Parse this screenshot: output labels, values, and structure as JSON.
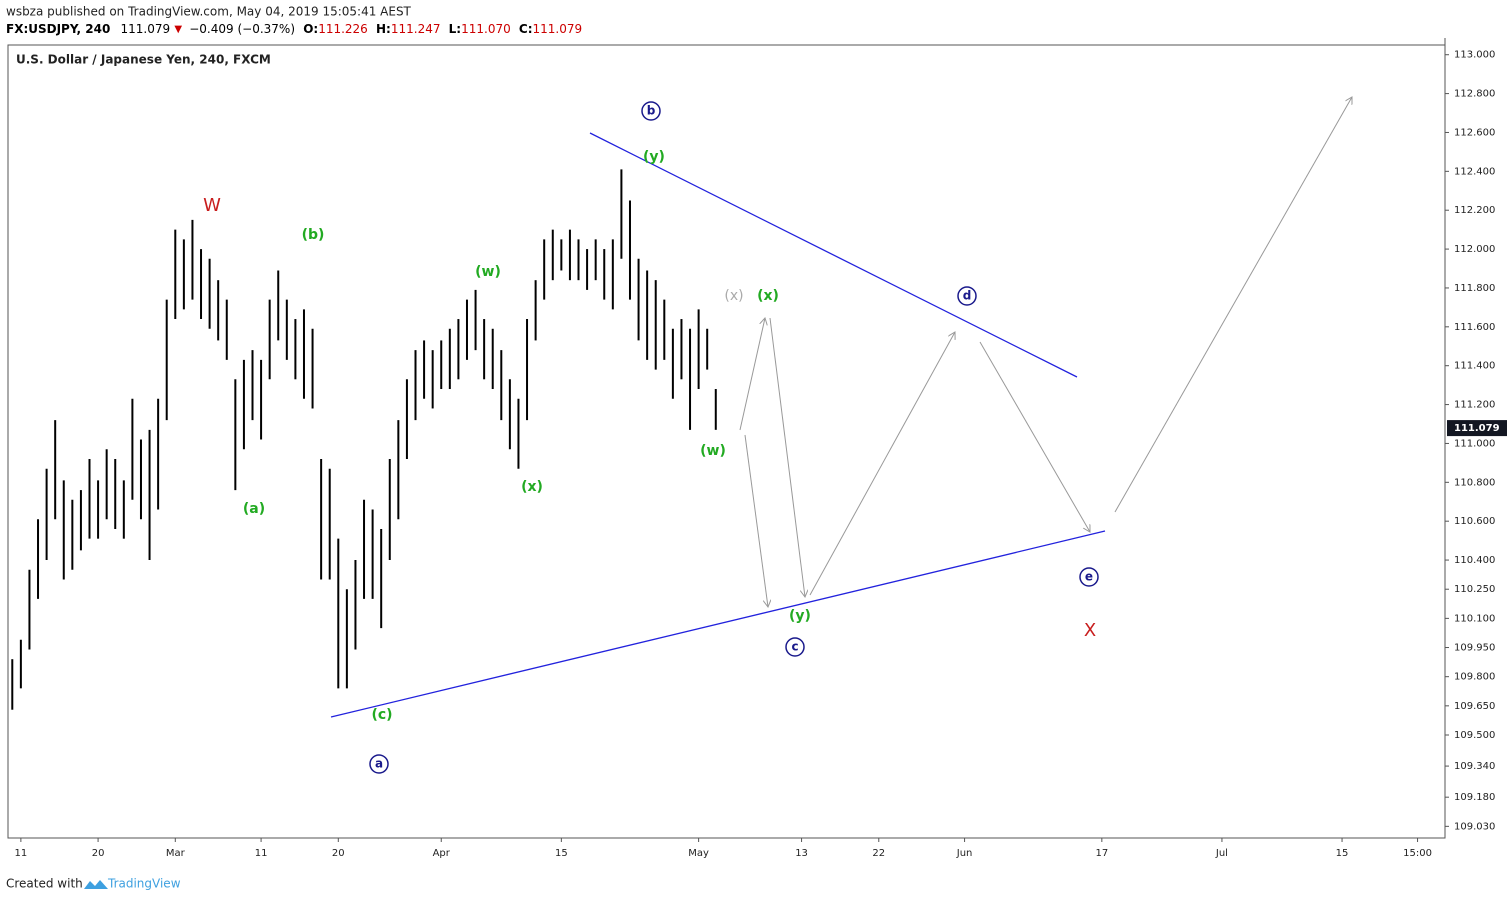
{
  "header": {
    "publisher": "wsbza published on TradingView.com, May 04, 2019 15:05:41 AEST",
    "symbol": "FX:USDJPY, 240",
    "last": "111.079",
    "change": "−0.409 (−0.37%)",
    "o_label": "O:",
    "o": "111.226",
    "h_label": "H:",
    "h": "111.247",
    "l_label": "L:",
    "l": "111.070",
    "c_label": "C:",
    "c": "111.079"
  },
  "footer": {
    "created": "Created with",
    "brand": "TradingView"
  },
  "chart_data": {
    "type": "ohlc",
    "title": "U.S. Dollar / Japanese Yen, 240, FXCM",
    "color": "#000000",
    "x": [
      9,
      10,
      11,
      12,
      13,
      14,
      15,
      16,
      17,
      18,
      19,
      20,
      21,
      22,
      23,
      24,
      25,
      26,
      27,
      28,
      29,
      30,
      31,
      32,
      33,
      34,
      35,
      36,
      37,
      38,
      39,
      40,
      41,
      42,
      43,
      44,
      45,
      46,
      47,
      48,
      49,
      50,
      51,
      52,
      53,
      54,
      55,
      56,
      57,
      58,
      59,
      60,
      61,
      62,
      63,
      64,
      65,
      66,
      67,
      68,
      69,
      70,
      71,
      72,
      73,
      74,
      75,
      76,
      77,
      78,
      79,
      80,
      81,
      82,
      83,
      84,
      85,
      86,
      87,
      88,
      89,
      90,
      91
    ],
    "series": [
      {
        "name": "high",
        "values": [
          109.89,
          109.99,
          110.35,
          110.61,
          110.87,
          111.12,
          110.81,
          110.71,
          110.76,
          110.92,
          110.81,
          110.97,
          110.92,
          110.81,
          111.23,
          111.02,
          111.07,
          111.23,
          111.74,
          112.1,
          112.05,
          112.15,
          112.0,
          111.95,
          111.84,
          111.74,
          111.33,
          111.43,
          111.48,
          111.43,
          111.74,
          111.89,
          111.74,
          111.64,
          111.69,
          111.59,
          110.92,
          110.87,
          110.51,
          110.25,
          110.4,
          110.71,
          110.66,
          110.56,
          110.92,
          111.12,
          111.33,
          111.48,
          111.53,
          111.48,
          111.53,
          111.59,
          111.64,
          111.74,
          111.79,
          111.64,
          111.59,
          111.48,
          111.33,
          111.23,
          111.64,
          111.84,
          112.05,
          112.1,
          112.05,
          112.1,
          112.05,
          112.0,
          112.05,
          112.0,
          112.05,
          112.41,
          112.25,
          111.95,
          111.89,
          111.84,
          111.74,
          111.59,
          111.64,
          111.59,
          111.69,
          111.59,
          111.28
        ]
      },
      {
        "name": "low",
        "values": [
          109.63,
          109.74,
          109.94,
          110.2,
          110.4,
          110.61,
          110.3,
          110.35,
          110.45,
          110.51,
          110.51,
          110.61,
          110.56,
          110.51,
          110.71,
          110.61,
          110.4,
          110.66,
          111.12,
          111.64,
          111.69,
          111.74,
          111.64,
          111.59,
          111.53,
          111.43,
          110.76,
          110.97,
          111.12,
          111.02,
          111.33,
          111.53,
          111.43,
          111.33,
          111.23,
          111.18,
          110.3,
          110.3,
          109.74,
          109.74,
          109.94,
          110.2,
          110.2,
          110.05,
          110.4,
          110.61,
          110.92,
          111.12,
          111.23,
          111.18,
          111.28,
          111.28,
          111.33,
          111.43,
          111.48,
          111.33,
          111.28,
          111.12,
          110.97,
          110.87,
          111.12,
          111.53,
          111.74,
          111.84,
          111.89,
          111.84,
          111.84,
          111.79,
          111.84,
          111.74,
          111.69,
          111.95,
          111.74,
          111.53,
          111.43,
          111.38,
          111.43,
          111.23,
          111.33,
          111.07,
          111.28,
          111.38,
          111.07
        ]
      }
    ],
    "last_price": {
      "value": 111.079,
      "label": "111.079"
    },
    "xlim": [
      8.5,
      176
    ],
    "xticks": [
      {
        "value": 10,
        "label": "11"
      },
      {
        "value": 19,
        "label": "20"
      },
      {
        "value": 28,
        "label": "Mar"
      },
      {
        "value": 38,
        "label": "11"
      },
      {
        "value": 47,
        "label": "20"
      },
      {
        "value": 59,
        "label": "Apr"
      },
      {
        "value": 73,
        "label": "15"
      },
      {
        "value": 89,
        "label": "May"
      },
      {
        "value": 101,
        "label": "13"
      },
      {
        "value": 110,
        "label": "22"
      },
      {
        "value": 120,
        "label": "Jun"
      },
      {
        "value": 136,
        "label": "17"
      },
      {
        "value": 150,
        "label": "Jul"
      },
      {
        "value": 164,
        "label": "15"
      },
      {
        "value": 172.8,
        "label": "15:00"
      }
    ],
    "ylim": [
      108.97,
      113.05
    ],
    "yticks": [
      {
        "value": 113,
        "label": "113.000"
      },
      {
        "value": 112.8,
        "label": "112.800"
      },
      {
        "value": 112.6,
        "label": "112.600"
      },
      {
        "value": 112.4,
        "label": "112.400"
      },
      {
        "value": 112.2,
        "label": "112.200"
      },
      {
        "value": 112,
        "label": "112.000"
      },
      {
        "value": 111.8,
        "label": "111.800"
      },
      {
        "value": 111.6,
        "label": "111.600"
      },
      {
        "value": 111.4,
        "label": "111.400"
      },
      {
        "value": 111.2,
        "label": "111.200"
      },
      {
        "value": 111,
        "label": "111.000"
      },
      {
        "value": 110.8,
        "label": "110.800"
      },
      {
        "value": 110.6,
        "label": "110.600"
      },
      {
        "value": 110.4,
        "label": "110.400"
      },
      {
        "value": 110.25,
        "label": "110.250"
      },
      {
        "value": 110.1,
        "label": "110.100"
      },
      {
        "value": 109.95,
        "label": "109.950"
      },
      {
        "value": 109.8,
        "label": "109.800"
      },
      {
        "value": 109.65,
        "label": "109.650"
      },
      {
        "value": 109.5,
        "label": "109.500"
      },
      {
        "value": 109.34,
        "label": "109.340"
      },
      {
        "value": 109.18,
        "label": "109.180"
      },
      {
        "value": 109.03,
        "label": "109.030"
      }
    ],
    "annotations": [
      "W",
      "(b)",
      "(a)",
      "(w)",
      "(x)",
      "(y)",
      "b",
      "(x)",
      "(x)",
      "(w)",
      "(c)",
      "a",
      "(y)",
      "c",
      "d",
      "e",
      "X"
    ]
  }
}
